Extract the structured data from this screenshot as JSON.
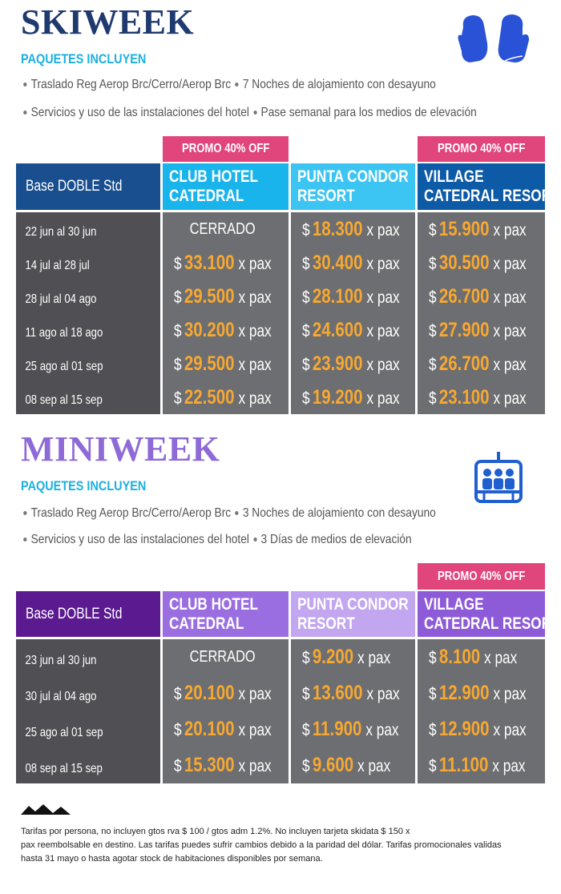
{
  "sections": [
    {
      "title": "SKIWEEK",
      "includes_title": "PAQUETES INCLUYEN",
      "includes": [
        [
          "Traslado Reg Aerop Brc/Cerro/Aerop Brc",
          "7 Noches de alojamiento con desayuno"
        ],
        [
          "Servicios y uso de las instalaciones del hotel",
          "Pase semanal para los medios de elevación"
        ]
      ],
      "columns": [
        {
          "label": [
            "Base DOBLE Std"
          ]
        },
        {
          "label": [
            "CLUB HOTEL",
            "CATEDRAL"
          ],
          "promo": "PROMO 40% OFF"
        },
        {
          "label": [
            "PUNTA CONDOR",
            "RESORT"
          ]
        },
        {
          "label": [
            "VILLAGE",
            "CATEDRAL RESORT"
          ],
          "promo": "PROMO 40% OFF"
        }
      ],
      "rows": [
        {
          "date": "22 jun al 30 jun",
          "cells": [
            "CERRADO",
            {
              "currency": "$",
              "amount": "18.300",
              "unit": "x pax"
            },
            {
              "currency": "$",
              "amount": "15.900",
              "unit": "x pax"
            }
          ]
        },
        {
          "date": "14 jul al 28 jul",
          "cells": [
            {
              "currency": "$",
              "amount": "33.100",
              "unit": "x pax"
            },
            {
              "currency": "$",
              "amount": "30.400",
              "unit": "x pax"
            },
            {
              "currency": "$",
              "amount": "30.500",
              "unit": "x pax"
            }
          ]
        },
        {
          "date": "28 jul al 04 ago",
          "cells": [
            {
              "currency": "$",
              "amount": "29.500",
              "unit": "x pax"
            },
            {
              "currency": "$",
              "amount": "28.100",
              "unit": "x pax"
            },
            {
              "currency": "$",
              "amount": "26.700",
              "unit": "x pax"
            }
          ]
        },
        {
          "date": "11 ago al 18 ago",
          "cells": [
            {
              "currency": "$",
              "amount": "30.200",
              "unit": "x pax"
            },
            {
              "currency": "$",
              "amount": "24.600",
              "unit": "x pax"
            },
            {
              "currency": "$",
              "amount": "27.900",
              "unit": "x pax"
            }
          ]
        },
        {
          "date": "25 ago al 01 sep",
          "cells": [
            {
              "currency": "$",
              "amount": "29.500",
              "unit": "x pax"
            },
            {
              "currency": "$",
              "amount": "23.900",
              "unit": "x pax"
            },
            {
              "currency": "$",
              "amount": "26.700",
              "unit": "x pax"
            }
          ]
        },
        {
          "date": "08 sep al 15 sep",
          "cells": [
            {
              "currency": "$",
              "amount": "22.500",
              "unit": "x pax"
            },
            {
              "currency": "$",
              "amount": "19.200",
              "unit": "x pax"
            },
            {
              "currency": "$",
              "amount": "23.100",
              "unit": "x pax"
            }
          ]
        }
      ]
    },
    {
      "title": "MINIWEEK",
      "includes_title": "PAQUETES INCLUYEN",
      "includes": [
        [
          "Traslado Reg Aerop Brc/Cerro/Aerop Brc",
          "3 Noches de alojamiento con desayuno"
        ],
        [
          "Servicios y uso de las instalaciones del hotel",
          "3 Días de medios de elevación"
        ]
      ],
      "columns": [
        {
          "label": [
            "Base DOBLE Std"
          ]
        },
        {
          "label": [
            "CLUB HOTEL",
            "CATEDRAL"
          ]
        },
        {
          "label": [
            "PUNTA CONDOR",
            "RESORT"
          ]
        },
        {
          "label": [
            "VILLAGE",
            "CATEDRAL RESORT"
          ],
          "promo": "PROMO 40% OFF"
        }
      ],
      "rows": [
        {
          "date": "23 jun al 30 jun",
          "cells": [
            "CERRADO",
            {
              "currency": "$",
              "amount": "9.200",
              "unit": "x pax"
            },
            {
              "currency": "$",
              "amount": "8.100",
              "unit": "x pax"
            }
          ]
        },
        {
          "date": "30 jul al 04 ago",
          "cells": [
            {
              "currency": "$",
              "amount": "20.100",
              "unit": "x pax"
            },
            {
              "currency": "$",
              "amount": "13.600",
              "unit": "x pax"
            },
            {
              "currency": "$",
              "amount": "12.900",
              "unit": "x pax"
            }
          ]
        },
        {
          "date": "25 ago al 01 sep",
          "cells": [
            {
              "currency": "$",
              "amount": "20.100",
              "unit": "x pax"
            },
            {
              "currency": "$",
              "amount": "11.900",
              "unit": "x pax"
            },
            {
              "currency": "$",
              "amount": "12.900",
              "unit": "x pax"
            }
          ]
        },
        {
          "date": "08 sep al 15 sep",
          "cells": [
            {
              "currency": "$",
              "amount": "15.300",
              "unit": "x pax"
            },
            {
              "currency": "$",
              "amount": "9.600",
              "unit": "x pax"
            },
            {
              "currency": "$",
              "amount": "11.100",
              "unit": "x pax"
            }
          ]
        }
      ]
    }
  ],
  "footer": [
    "Tarifas por persona, no incluyen gtos rva $ 100 / gtos adm 1.2%. No incluyen tarjeta skidata $ 150 x",
    "pax reembolsable en destino. Las tarifas puedes sufrir cambios debido a la paridad del dólar. Tarifas promocionales validas",
    "hasta 31 mayo o hasta agotar stock de habitaciones disponibles por semana."
  ]
}
